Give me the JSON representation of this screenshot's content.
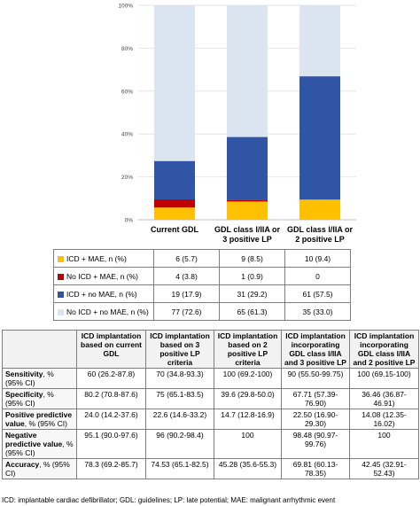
{
  "chart_data": {
    "type": "bar",
    "stacked": true,
    "categories": [
      "Current GDL",
      "GDL class I/IIA or 3 positive LP",
      "GDL class I/IIA or 2 positive LP"
    ],
    "category_lines": [
      [
        "Current GDL"
      ],
      [
        "GDL class I/IIA or",
        "3 positive LP"
      ],
      [
        "GDL class I/IIA or",
        "2 positive LP"
      ]
    ],
    "ylim": [
      0,
      100
    ],
    "y_ticks": [
      "0%",
      "20%",
      "40%",
      "60%",
      "80%",
      "100%"
    ],
    "series": [
      {
        "name": "ICD + MAE, n (%)",
        "color": "#ffc000",
        "values": [
          5.7,
          8.5,
          9.4
        ],
        "labels": [
          "6 (5.7)",
          "9 (8.5)",
          "10 (9.4)"
        ]
      },
      {
        "name": "No ICD + MAE, n (%)",
        "color": "#c00000",
        "values": [
          3.8,
          0.9,
          0
        ],
        "labels": [
          "4 (3.8)",
          "1 (0.9)",
          "0"
        ]
      },
      {
        "name": "ICD + no MAE, n (%)",
        "color": "#2f55a4",
        "values": [
          17.9,
          29.2,
          57.5
        ],
        "labels": [
          "19 (17.9)",
          "31 (29.2)",
          "61 (57.5)"
        ]
      },
      {
        "name": "No ICD + no MAE, n (%)",
        "color": "#dbe5f1",
        "values": [
          72.6,
          61.3,
          33.0
        ],
        "labels": [
          "77 (72.6)",
          "65 (61.3)",
          "35 (33.0)"
        ]
      }
    ]
  },
  "table": {
    "headers": [
      "",
      "ICD implantation based on current GDL",
      "ICD implantation based on 3 positive LP criteria",
      "ICD implantation based on 2 positive LP criteria",
      "ICD implantation incorporating GDL class I/IIA and 3 positive LP",
      "ICD implantation incorporating GDL class I/IIA and 2 positive LP"
    ],
    "rows": [
      {
        "metric": "Sensitivity",
        "unit": ", % (95% CI)",
        "cells": [
          "60 (26.2-87.8)",
          "70 (34.8-93.3)",
          "100 (69.2-100)",
          "90 (55.50-99.75)",
          "100 (69.15-100)"
        ]
      },
      {
        "metric": "Specificity",
        "unit": ", % (95% CI)",
        "cells": [
          "80.2 (70.8-87.6)",
          "75 (65.1-83.5)",
          "39.6 (29.8-50.0)",
          "67.71 (57.39-76.90)",
          "36.46 (36.87-46.91)"
        ]
      },
      {
        "metric": "Positive predictive value",
        "unit": ", % (95% CI)",
        "cells": [
          "24.0 (14.2-37.6)",
          "22.6 (14.6-33.2)",
          "14.7 (12.8-16.9)",
          "22.50 (16.90-29.30)",
          "14.08 (12.35-16.02)"
        ]
      },
      {
        "metric": "Negative predictive value",
        "unit": ", % (95% CI)",
        "cells": [
          "95.1 (90.0-97.6)",
          "96 (90.2-98.4)",
          "100",
          "98.48 (90.97-99.76)",
          "100"
        ]
      },
      {
        "metric": "Accuracy",
        "unit": ", % (95% CI)",
        "cells": [
          "78.3 (69.2-85.7)",
          "74.53 (65.1-82.5)",
          "45.28 (35.6-55.3)",
          "69.81 (60.13-78.35)",
          "42.45 (32.91-52.43)"
        ]
      }
    ]
  },
  "footer": "ICD: implantable cardiac defibrillator; GDL: guidelines; LP: late potential; MAE: malignant arrhythmic event"
}
